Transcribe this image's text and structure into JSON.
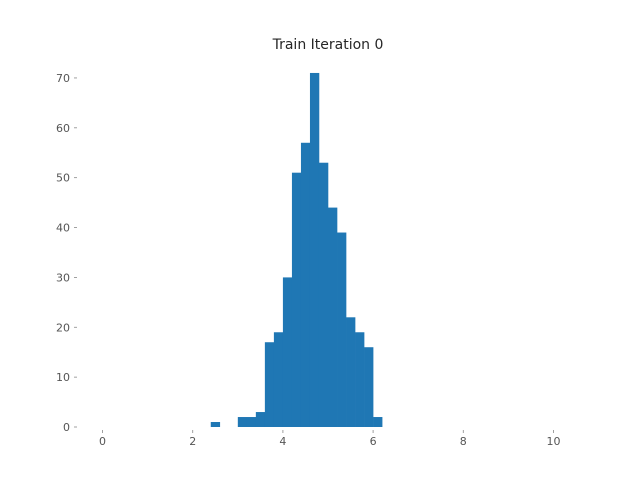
{
  "colors": {
    "bar": "#1f77b4",
    "background": "#ffffff",
    "text": "#262626",
    "ticks": "#555555"
  },
  "chart_data": {
    "type": "bar",
    "title": "Train Iteration 0",
    "xlabel": "",
    "ylabel": "",
    "xlim": [
      -0.5,
      10.5
    ],
    "ylim": [
      0,
      74
    ],
    "grid": false,
    "legend": "none",
    "x_ticks": [
      0,
      2,
      4,
      6,
      8,
      10
    ],
    "x_tick_labels": [
      "0",
      "2",
      "4",
      "6",
      "8",
      "10"
    ],
    "y_ticks": [
      0,
      10,
      20,
      30,
      40,
      50,
      60,
      70
    ],
    "y_tick_labels": [
      "0",
      "10",
      "20",
      "30",
      "40",
      "50",
      "60",
      "70"
    ],
    "bin_width": 0.2,
    "bins": [
      {
        "x0": 2.4,
        "x1": 2.6,
        "value": 1
      },
      {
        "x0": 3.0,
        "x1": 3.2,
        "value": 2
      },
      {
        "x0": 3.2,
        "x1": 3.4,
        "value": 2
      },
      {
        "x0": 3.4,
        "x1": 3.6,
        "value": 3
      },
      {
        "x0": 3.6,
        "x1": 3.8,
        "value": 17
      },
      {
        "x0": 3.8,
        "x1": 4.0,
        "value": 19
      },
      {
        "x0": 4.0,
        "x1": 4.2,
        "value": 30
      },
      {
        "x0": 4.2,
        "x1": 4.4,
        "value": 51
      },
      {
        "x0": 4.4,
        "x1": 4.6,
        "value": 57
      },
      {
        "x0": 4.6,
        "x1": 4.8,
        "value": 71
      },
      {
        "x0": 4.8,
        "x1": 5.0,
        "value": 53
      },
      {
        "x0": 5.0,
        "x1": 5.2,
        "value": 44
      },
      {
        "x0": 5.2,
        "x1": 5.4,
        "value": 39
      },
      {
        "x0": 5.4,
        "x1": 5.6,
        "value": 22
      },
      {
        "x0": 5.6,
        "x1": 5.8,
        "value": 19
      },
      {
        "x0": 5.8,
        "x1": 6.0,
        "value": 16
      },
      {
        "x0": 6.0,
        "x1": 6.2,
        "value": 2
      }
    ]
  }
}
